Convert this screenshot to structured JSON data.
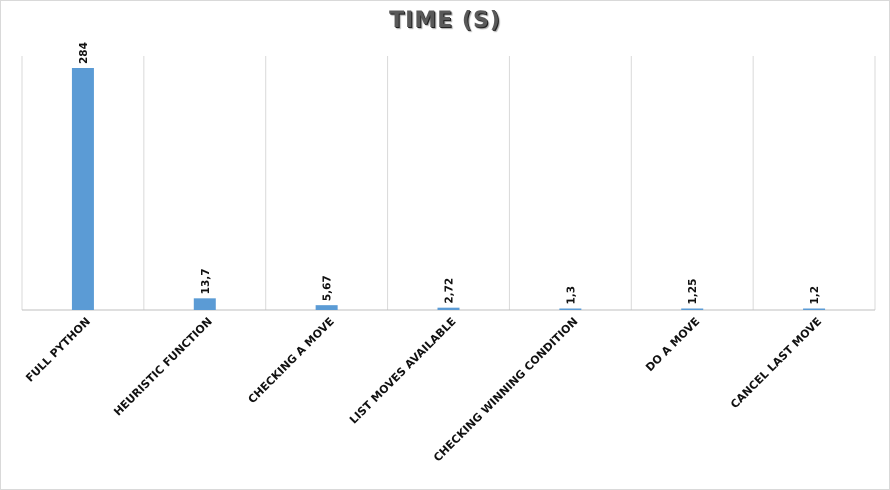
{
  "chart_data": {
    "type": "bar",
    "title": "TIME (S)",
    "categories": [
      "FULL PYTHON",
      "HEURISTIC FUNCTION",
      "CHECKING A MOVE",
      "LIST MOVES AVAILABLE",
      "CHECKING WINNING CONDITION",
      "DO A MOVE",
      "CANCEL LAST MOVE"
    ],
    "values": [
      284,
      13.7,
      5.67,
      2.72,
      1.3,
      1.25,
      1.2
    ],
    "data_labels": [
      "284",
      "13,7",
      "5,67",
      "2,72",
      "1,3",
      "1,25",
      "1,2"
    ],
    "xlabel": "",
    "ylabel": "",
    "ylim": [
      0,
      284
    ],
    "grid": "vertical",
    "legend": "none",
    "bar_color": "#5b9bd5",
    "grid_color": "#d9d9d9",
    "axis_color": "#bfbfbf"
  }
}
